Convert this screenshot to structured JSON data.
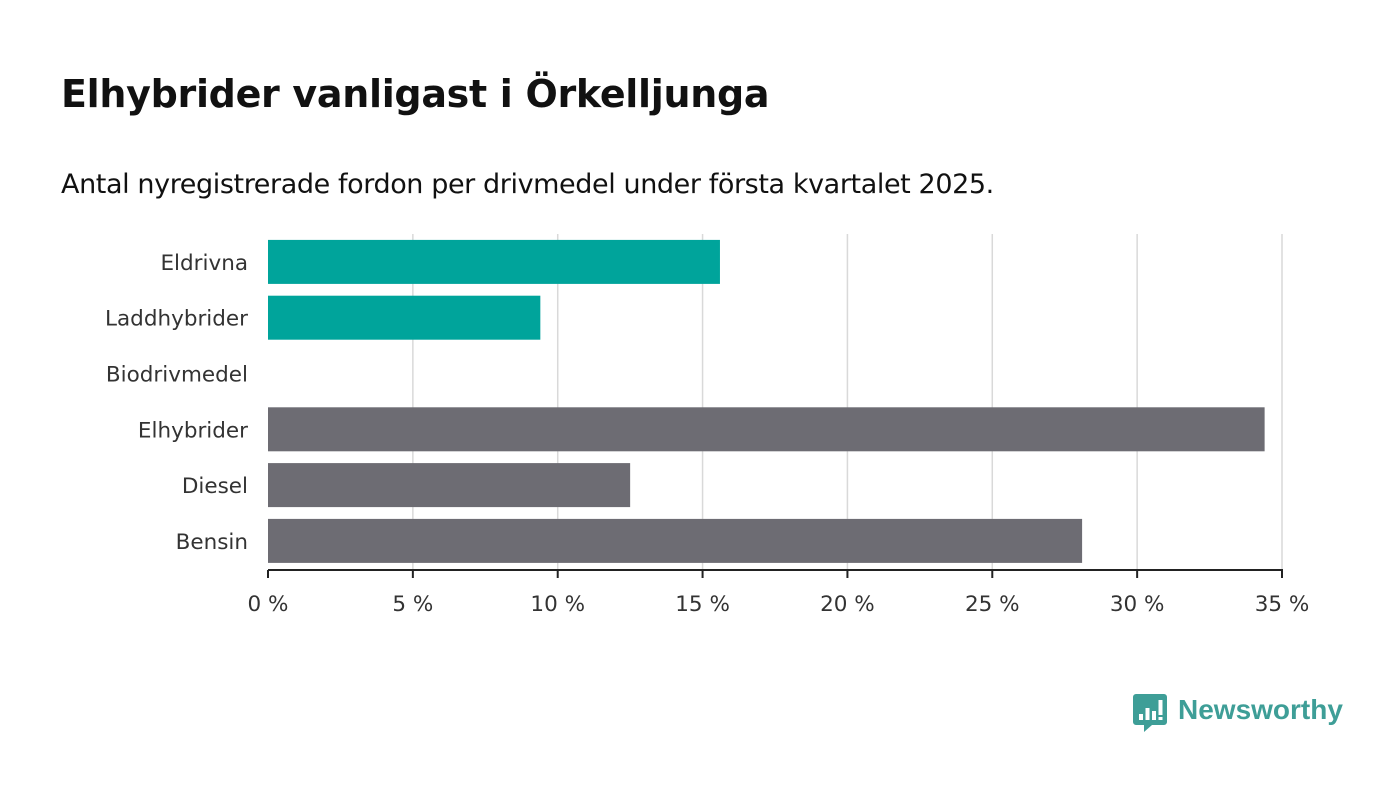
{
  "chart_data": {
    "type": "bar",
    "orientation": "horizontal",
    "title": "Elhybrider vanligast i Örkelljunga",
    "subtitle": "Antal nyregistrerade fordon per drivmedel under första kvartalet 2025.",
    "categories": [
      "Eldrivna",
      "Laddhybrider",
      "Biodrivmedel",
      "Elhybrider",
      "Diesel",
      "Bensin"
    ],
    "values": [
      15.6,
      9.4,
      0,
      34.4,
      12.5,
      28.1
    ],
    "unit": "%",
    "xlim": [
      0,
      35
    ],
    "xticks": [
      0,
      5,
      10,
      15,
      20,
      25,
      30,
      35
    ],
    "xtick_labels": [
      "0 %",
      "5 %",
      "10 %",
      "15 %",
      "20 %",
      "25 %",
      "30 %",
      "35 %"
    ],
    "grid": true,
    "colors": {
      "Eldrivna": "#00a49b",
      "Laddhybrider": "#00a49b",
      "Biodrivmedel": "#00a49b",
      "Elhybrider": "#6d6c73",
      "Diesel": "#6d6c73",
      "Bensin": "#6d6c73"
    }
  },
  "brand": {
    "name": "Newsworthy",
    "color": "#3e9e97",
    "icon": "bar-chart-speech-bubble-icon"
  }
}
